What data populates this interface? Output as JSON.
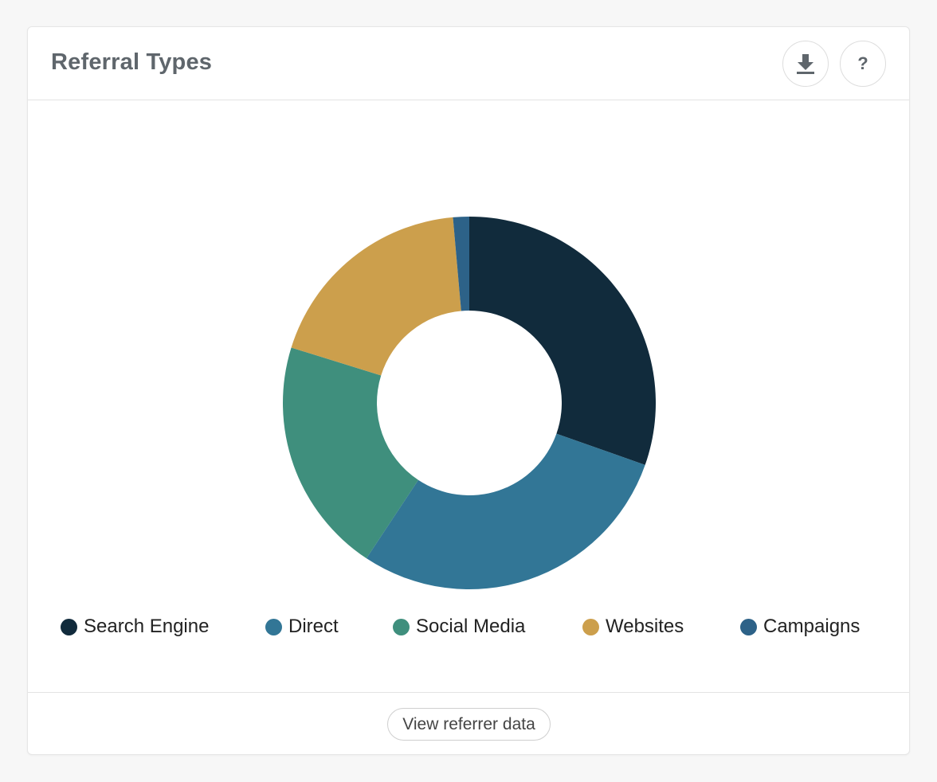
{
  "card": {
    "title": "Referral Types",
    "download_icon": "download-icon",
    "help_label": "?",
    "help_icon": "help-icon",
    "footer_button_label": "View referrer data"
  },
  "chart_data": {
    "type": "pie",
    "style": "donut",
    "title": "Referral Types",
    "legend_position": "bottom",
    "categories": [
      "Search Engine",
      "Direct",
      "Social Media",
      "Websites",
      "Campaigns"
    ],
    "values": [
      30.4,
      28.9,
      20.5,
      18.8,
      1.4
    ],
    "unit": "percent",
    "colors": [
      "#112b3c",
      "#327696",
      "#3f8f7d",
      "#cc9f4c",
      "#2d6288"
    ]
  }
}
